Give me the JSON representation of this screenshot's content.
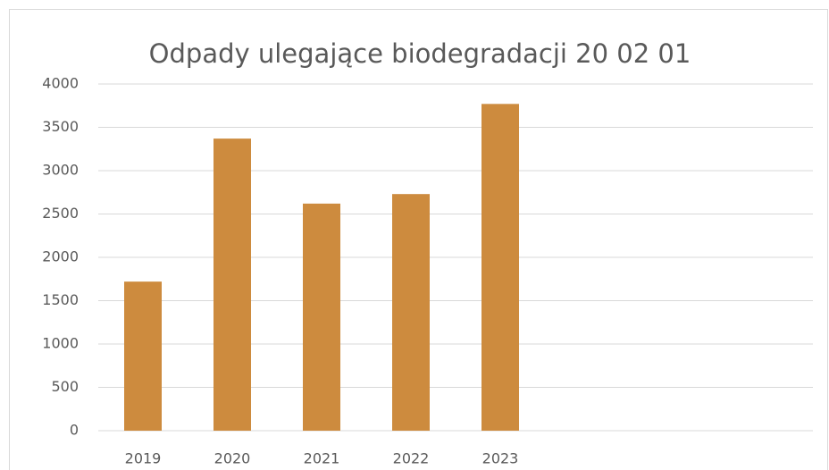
{
  "chart_data": {
    "type": "bar",
    "title": "Odpady ulegające biodegradacji 20 02 01",
    "categories": [
      "2019",
      "2020",
      "2021",
      "2022",
      "2023",
      null,
      null,
      null
    ],
    "values": [
      1720,
      3370,
      2620,
      2730,
      3770,
      null,
      null,
      null
    ],
    "color": "#cd8b3e",
    "ylim": [
      0,
      4000
    ],
    "yticks": [
      0,
      500,
      1000,
      1500,
      2000,
      2500,
      3000,
      3500,
      4000
    ],
    "grid": true
  }
}
